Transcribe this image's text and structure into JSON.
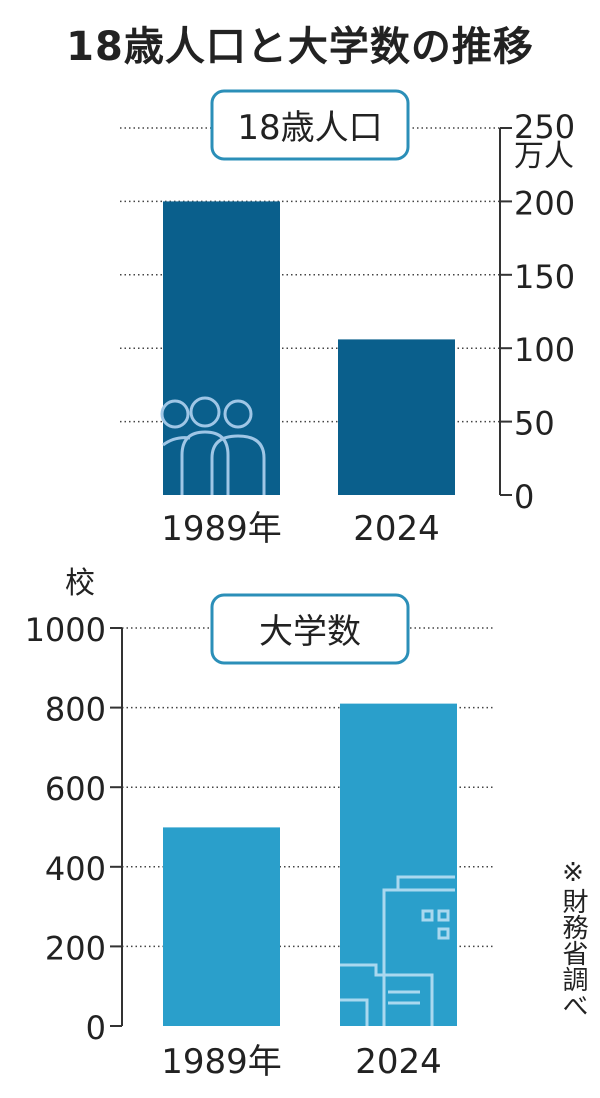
{
  "title": "18歳人口と大学数の推移",
  "note": "※財務省調べ",
  "colors": {
    "population": "#0a5f8c",
    "universities": "#2a9fcb",
    "box_border": "#2b8fb8"
  },
  "chart_data": [
    {
      "type": "bar",
      "title": "18歳人口",
      "categories": [
        "1989年",
        "2024"
      ],
      "values": [
        200,
        106
      ],
      "ylim": [
        0,
        250
      ],
      "yticks": [
        0,
        50,
        100,
        150,
        200,
        250
      ],
      "yunit": "万人",
      "grid": true,
      "decoration": "people-icon"
    },
    {
      "type": "bar",
      "title": "大学数",
      "categories": [
        "1989年",
        "2024"
      ],
      "values": [
        499,
        810
      ],
      "ylim": [
        0,
        1000
      ],
      "yticks": [
        0,
        200,
        400,
        600,
        800,
        1000
      ],
      "yunit": "校",
      "grid": true,
      "decoration": "building-icon"
    }
  ]
}
